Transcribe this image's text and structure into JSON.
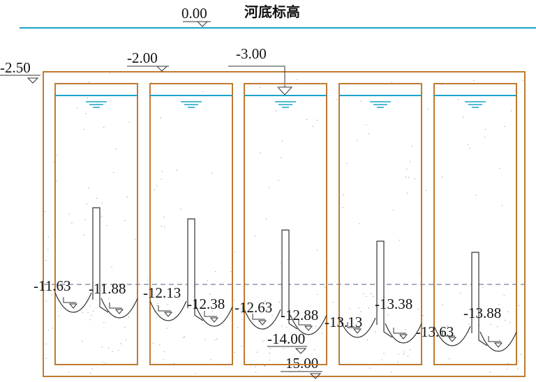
{
  "header": {
    "elevation": "0.00",
    "title": "河底标高"
  },
  "levels": {
    "outer": "-2.50",
    "inner": "-2.00",
    "water": "-3.00",
    "bottom_inner": "-14.00",
    "bottom_outer": "-15.00"
  },
  "chambers": [
    {
      "left": "-11.63",
      "right": "-11.88"
    },
    {
      "left": "-12.13",
      "right": "-12.38"
    },
    {
      "left": "-12.63",
      "right": "-12.88"
    },
    {
      "left": "-13.13",
      "right": "-13.38"
    },
    {
      "left": "-13.63",
      "right": "-13.88"
    }
  ]
}
